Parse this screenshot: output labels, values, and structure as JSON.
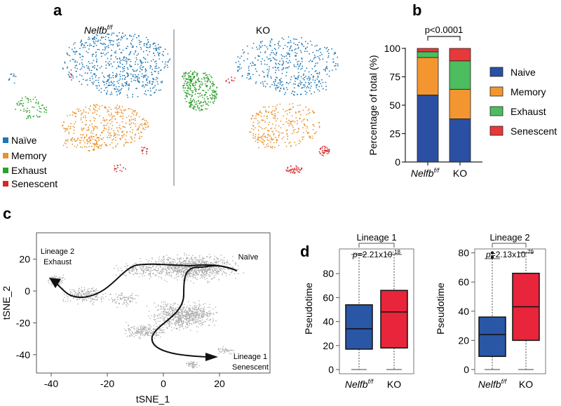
{
  "panel_labels": {
    "a": "a",
    "b": "b",
    "c": "c",
    "d": "d"
  },
  "groups": {
    "wt_main": "Nelfb",
    "wt_sup": "f/f",
    "ko": "KO"
  },
  "colors": {
    "naive": "#1f77b4",
    "memory": "#e8912c",
    "exhaust": "#2ca02c",
    "senescent": "#d62728",
    "bar_naive": "#2a4fa3",
    "bar_memory": "#f4962f",
    "bar_exhaust": "#4dbd5f",
    "bar_senescent": "#e8383a",
    "box_wt": "#2a56a6",
    "box_ko": "#e8253a",
    "gray": "#a9a9a9"
  },
  "chart_data": [
    {
      "panel": "a",
      "type": "scatter",
      "titles": [
        "Nelfb f/f",
        "KO"
      ],
      "legend": [
        "Naïve",
        "Memory",
        "Exhaust",
        "Senescent"
      ],
      "legend_placement": "bottom-left"
    },
    {
      "panel": "b",
      "type": "bar",
      "stacked": true,
      "categories": [
        "Nelfb f/f",
        "KO"
      ],
      "series": [
        {
          "name": "Naive",
          "values": [
            59,
            38
          ]
        },
        {
          "name": "Memory",
          "values": [
            33,
            26
          ]
        },
        {
          "name": "Exhaust",
          "values": [
            5,
            25
          ]
        },
        {
          "name": "Senescent",
          "values": [
            3,
            11
          ]
        }
      ],
      "ylabel": "Percentage of total (%)",
      "ylim": [
        0,
        100
      ],
      "yticks": [
        "0",
        "25",
        "50",
        "75",
        "100"
      ],
      "annotation": "p<0.0001",
      "legend_placement": "right"
    },
    {
      "panel": "c",
      "type": "scatter",
      "xlabel": "tSNE_1",
      "ylabel": "tSNE_2",
      "xticks": [
        "-40",
        "-20",
        "0",
        "20"
      ],
      "yticks": [
        "20",
        "0",
        "-20",
        "-40"
      ],
      "annotations": {
        "naive": "Naïve",
        "l2_a": "Lineage 2",
        "l2_b": "Exhaust",
        "l1_a": "Lineage 1",
        "l1_b": "Senescent"
      }
    },
    {
      "panel": "d1",
      "type": "box",
      "title": "Lineage 1",
      "ylabel": "Pseudotime",
      "yticks": [
        "0",
        "20",
        "40",
        "60",
        "80"
      ],
      "annotation": {
        "p": "p",
        "rest": "=2.21x10",
        "exp": "-18"
      },
      "categories": [
        "Nelfb f/f",
        "KO"
      ],
      "boxes": [
        {
          "min": 0,
          "q1": 17,
          "median": 34,
          "q3": 54,
          "max": 96,
          "outliers": []
        },
        {
          "min": 0,
          "q1": 18,
          "median": 48,
          "q3": 66,
          "max": 96,
          "outliers": []
        }
      ]
    },
    {
      "panel": "d2",
      "type": "box",
      "title": "Lineage 2",
      "ylabel": "Pseudotime",
      "yticks": [
        "0",
        "20",
        "40",
        "60",
        "80"
      ],
      "annotation": {
        "p": "p",
        "rest": "=2.13x10",
        "exp": "-79"
      },
      "categories": [
        "Nelfb f/f",
        "KO"
      ],
      "boxes": [
        {
          "min": 0,
          "q1": 9,
          "median": 24,
          "q3": 36,
          "max": 76,
          "outliers": [
            77,
            80
          ]
        },
        {
          "min": 0,
          "q1": 20,
          "median": 43,
          "q3": 66,
          "max": 80,
          "outliers": []
        }
      ]
    }
  ]
}
